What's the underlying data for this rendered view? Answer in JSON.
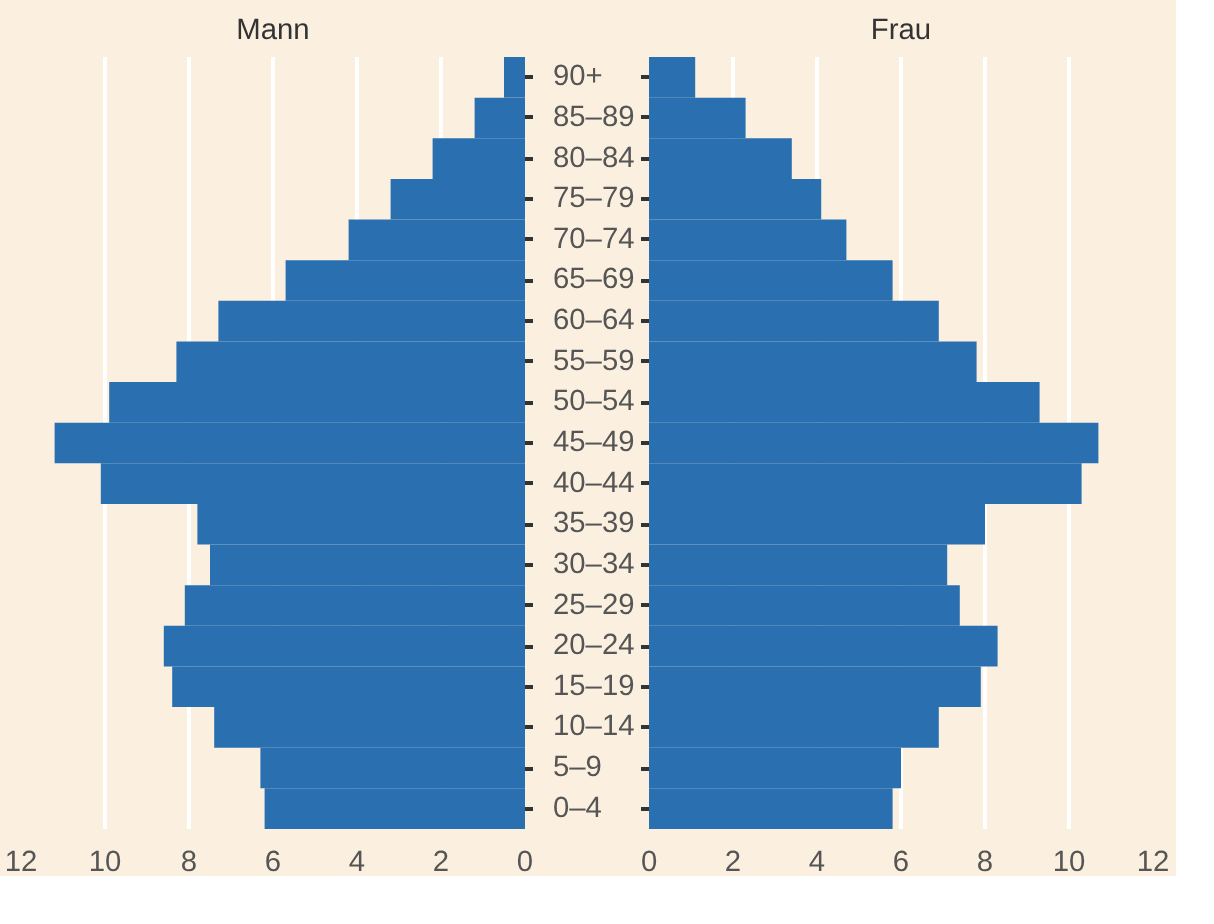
{
  "chart_data": [
    {
      "type": "bar",
      "orientation": "horizontal",
      "title": "Mann",
      "categories": [
        "90+",
        "85–89",
        "80–84",
        "75–79",
        "70–74",
        "65–69",
        "60–64",
        "55–59",
        "50–54",
        "45–49",
        "40–44",
        "35–39",
        "30–34",
        "25–29",
        "20–24",
        "15–19",
        "10–14",
        "5–9",
        "0–4"
      ],
      "values": [
        0.5,
        1.2,
        2.2,
        3.2,
        4.2,
        5.7,
        7.3,
        8.3,
        9.9,
        11.2,
        10.1,
        7.8,
        7.5,
        8.1,
        8.6,
        8.4,
        7.4,
        6.3,
        6.2
      ],
      "color": "#2a70b0",
      "xlim": [
        12,
        0
      ],
      "xticks": [
        0,
        2,
        4,
        6,
        8,
        10,
        12
      ],
      "grid": "x"
    },
    {
      "type": "bar",
      "orientation": "horizontal",
      "title": "Frau",
      "categories": [
        null,
        null,
        null,
        null,
        null,
        null,
        null,
        null,
        null,
        null,
        null,
        null,
        null,
        null,
        null,
        null,
        null,
        null,
        null
      ],
      "values": [
        1.1,
        2.3,
        3.4,
        4.1,
        4.7,
        5.8,
        6.9,
        7.8,
        9.3,
        10.7,
        10.3,
        8.0,
        7.1,
        7.4,
        8.3,
        7.9,
        6.9,
        6.0,
        5.8
      ],
      "color": "#2a70b0",
      "xlim": [
        0,
        12
      ],
      "xticks": [
        0,
        2,
        4,
        6,
        8,
        10,
        12
      ],
      "grid": "x"
    }
  ]
}
